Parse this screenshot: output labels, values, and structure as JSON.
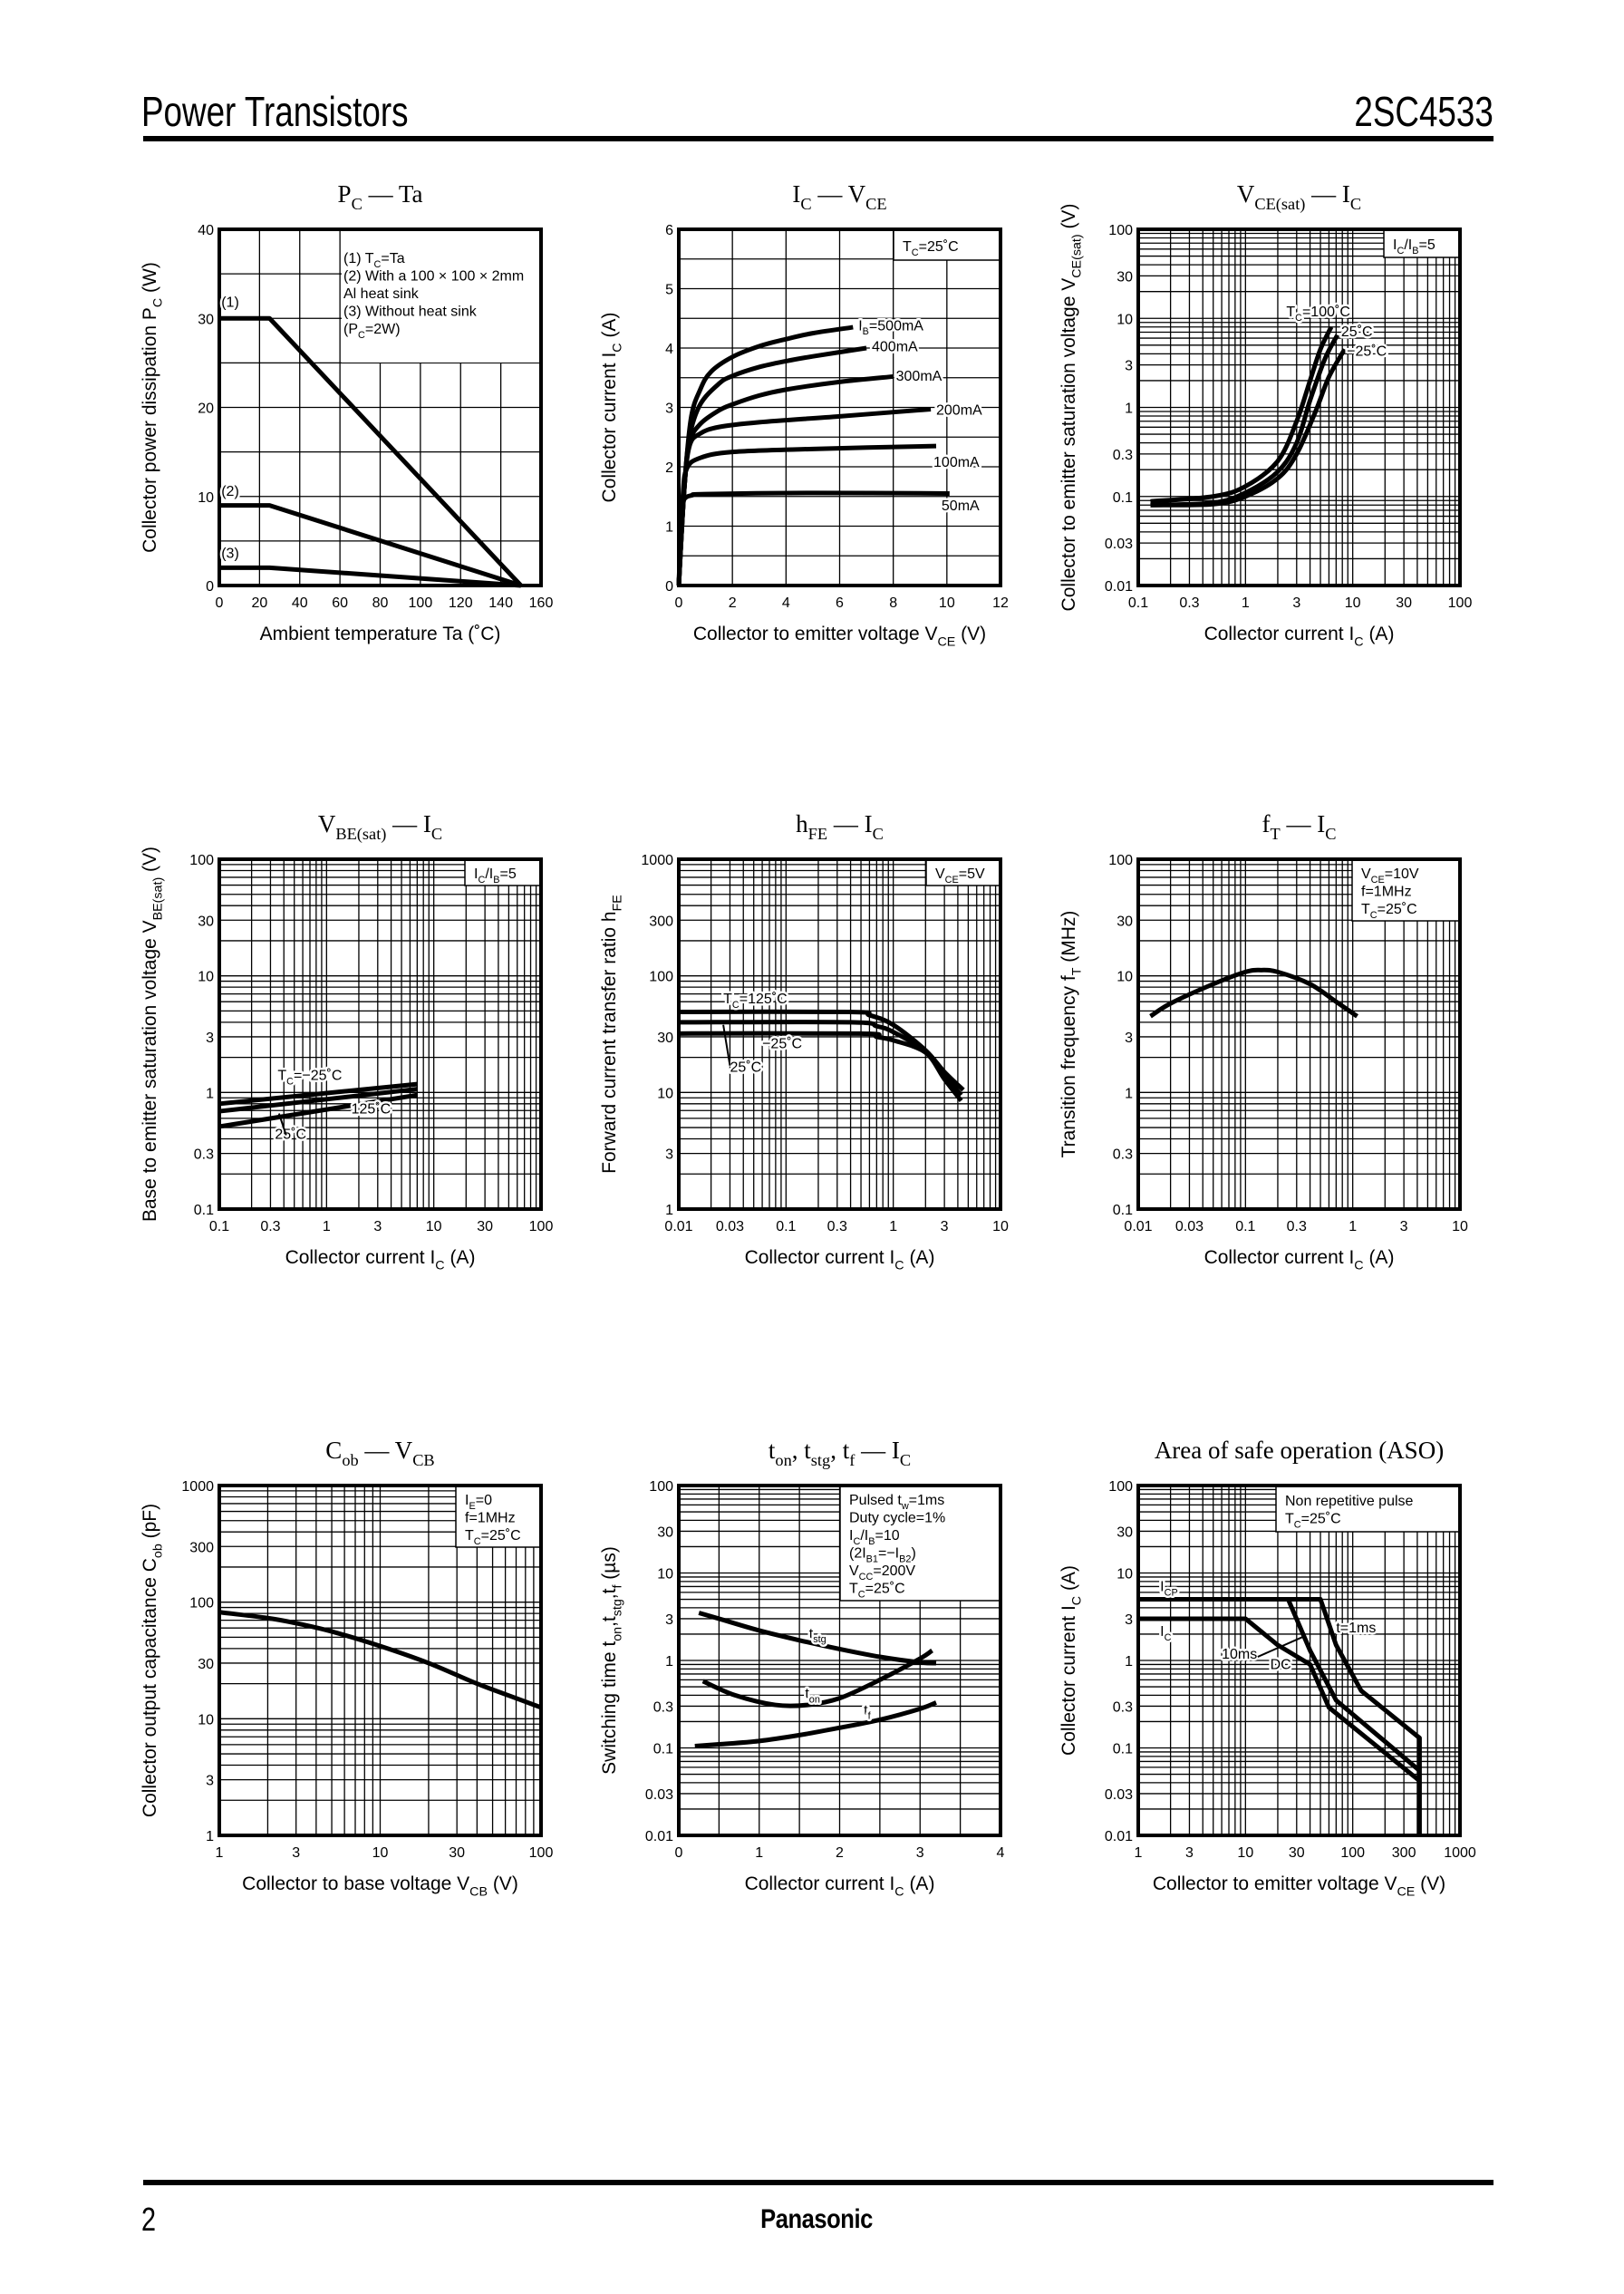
{
  "header": {
    "title": "Power Transistors",
    "part_number": "2SC4533"
  },
  "footer": {
    "page": "2",
    "brand": "Panasonic"
  },
  "chart_data": [
    {
      "type": "line",
      "title": "P_{C} — Ta",
      "xlabel": "Ambient temperature   Ta   (˚C)",
      "ylabel": "Collector power dissipation   P_{C}   (W)",
      "xscale": "linear",
      "yscale": "linear",
      "xlim": [
        0,
        160
      ],
      "ylim": [
        0,
        40
      ],
      "xticks": [
        0,
        20,
        40,
        60,
        80,
        100,
        120,
        140,
        160
      ],
      "yticks": [
        0,
        10,
        20,
        30,
        40
      ],
      "grid": true,
      "xgrid_step": 20,
      "ygrid_step": 5,
      "conditions": [
        "(1) T_{C}=Ta",
        "(2) With a 100 × 100 × 2mm",
        "      Al heat sink",
        "(3) Without heat sink",
        "      (P_{C}=2W)"
      ],
      "series": [
        {
          "name": "(1)",
          "points": [
            [
              0,
              30
            ],
            [
              25,
              30
            ],
            [
              150,
              0
            ]
          ]
        },
        {
          "name": "(2)",
          "points": [
            [
              0,
              9
            ],
            [
              25,
              9
            ],
            [
              150,
              0
            ]
          ]
        },
        {
          "name": "(3)",
          "points": [
            [
              0,
              2
            ],
            [
              25,
              2
            ],
            [
              150,
              0
            ]
          ]
        }
      ],
      "annotations": []
    },
    {
      "type": "line",
      "title": "I_{C} — V_{CE}",
      "xlabel": "Collector to emitter voltage   V_{CE}   (V)",
      "ylabel": "Collector current   I_{C}   (A)",
      "xscale": "linear",
      "yscale": "linear",
      "xlim": [
        0,
        12
      ],
      "ylim": [
        0,
        6
      ],
      "xticks": [
        0,
        2,
        4,
        6,
        8,
        10,
        12
      ],
      "yticks": [
        0,
        1,
        2,
        3,
        4,
        5,
        6
      ],
      "grid": true,
      "xgrid_step": 2,
      "ygrid_step": 0.5,
      "conditions": [
        "T_{C}=25˚C"
      ],
      "series": [
        {
          "name": "I_{B}=500mA",
          "points": [
            [
              0,
              0
            ],
            [
              0.2,
              1.6
            ],
            [
              0.45,
              2.8
            ],
            [
              0.8,
              3.3
            ],
            [
              1.2,
              3.6
            ],
            [
              2,
              3.85
            ],
            [
              3,
              4.03
            ],
            [
              4,
              4.15
            ],
            [
              5,
              4.25
            ],
            [
              6.5,
              4.35
            ]
          ]
        },
        {
          "name": "400mA",
          "points": [
            [
              0,
              0
            ],
            [
              0.2,
              1.6
            ],
            [
              0.4,
              2.5
            ],
            [
              0.8,
              3.05
            ],
            [
              1.5,
              3.4
            ],
            [
              2,
              3.53
            ],
            [
              3,
              3.68
            ],
            [
              4,
              3.78
            ],
            [
              5,
              3.86
            ],
            [
              7,
              4.0
            ]
          ]
        },
        {
          "name": "300mA",
          "points": [
            [
              0,
              0
            ],
            [
              0.2,
              1.6
            ],
            [
              0.4,
              2.4
            ],
            [
              0.8,
              2.72
            ],
            [
              1.5,
              2.95
            ],
            [
              2,
              3.05
            ],
            [
              3,
              3.2
            ],
            [
              4,
              3.3
            ],
            [
              6,
              3.43
            ],
            [
              8,
              3.52
            ]
          ]
        },
        {
          "name": "200mA",
          "points": [
            [
              0,
              0
            ],
            [
              0.2,
              1.6
            ],
            [
              0.4,
              2.35
            ],
            [
              0.8,
              2.56
            ],
            [
              1.5,
              2.67
            ],
            [
              3,
              2.75
            ],
            [
              6,
              2.85
            ],
            [
              9.4,
              2.97
            ]
          ]
        },
        {
          "name": "100mA",
          "points": [
            [
              0,
              0
            ],
            [
              0.15,
              1.5
            ],
            [
              0.3,
              1.97
            ],
            [
              0.8,
              2.15
            ],
            [
              2,
              2.25
            ],
            [
              5,
              2.3
            ],
            [
              9.6,
              2.35
            ]
          ]
        },
        {
          "name": "50mA",
          "points": [
            [
              0,
              0
            ],
            [
              0.1,
              1.2
            ],
            [
              0.2,
              1.45
            ],
            [
              0.5,
              1.52
            ],
            [
              1,
              1.54
            ],
            [
              5,
              1.56
            ],
            [
              10.1,
              1.55
            ]
          ]
        }
      ],
      "annotations": []
    },
    {
      "type": "line",
      "title": "V_{CE(sat)} — I_{C}",
      "xlabel": "Collector current   I_{C}   (A)",
      "ylabel": "Collector to emitter saturation voltage   V_{CE(sat)}   (V)",
      "xscale": "log",
      "yscale": "log",
      "xlim": [
        0.1,
        100
      ],
      "ylim": [
        0.01,
        100
      ],
      "xticks": [
        0.1,
        0.3,
        1,
        3,
        10,
        30,
        100
      ],
      "yticks": [
        0.01,
        0.03,
        0.1,
        0.3,
        1,
        3,
        10,
        30,
        100
      ],
      "grid": true,
      "conditions": [
        "I_{C}/I_{B}=5"
      ],
      "series": [
        {
          "name": "T_{C}=100˚C",
          "points": [
            [
              0.13,
              0.088
            ],
            [
              0.5,
              0.1
            ],
            [
              1,
              0.13
            ],
            [
              2,
              0.25
            ],
            [
              3,
              0.7
            ],
            [
              4,
              2
            ],
            [
              5,
              4.5
            ],
            [
              6.3,
              8
            ]
          ]
        },
        {
          "name": "25˚C",
          "points": [
            [
              0.13,
              0.08
            ],
            [
              0.5,
              0.085
            ],
            [
              1,
              0.11
            ],
            [
              2,
              0.19
            ],
            [
              3,
              0.4
            ],
            [
              4,
              1.2
            ],
            [
              5.5,
              3.5
            ],
            [
              7.2,
              6.5
            ]
          ]
        },
        {
          "name": "−25˚C",
          "points": [
            [
              0.13,
              0.08
            ],
            [
              0.5,
              0.082
            ],
            [
              1,
              0.1
            ],
            [
              2,
              0.16
            ],
            [
              3,
              0.3
            ],
            [
              4.5,
              0.9
            ],
            [
              6,
              2.2
            ],
            [
              8.4,
              4.5
            ]
          ]
        }
      ],
      "annotations": []
    },
    {
      "type": "line",
      "title": "V_{BE(sat)} — I_{C}",
      "xlabel": "Collector current   I_{C}   (A)",
      "ylabel": "Base to emitter saturation voltage   V_{BE(sat)}   (V)",
      "xscale": "log",
      "yscale": "log",
      "xlim": [
        0.1,
        100
      ],
      "ylim": [
        0.1,
        100
      ],
      "xticks": [
        0.1,
        0.3,
        1,
        3,
        10,
        30,
        100
      ],
      "yticks": [
        0.1,
        0.3,
        1,
        3,
        10,
        30,
        100
      ],
      "grid": true,
      "conditions": [
        "I_{C}/I_{B}=5"
      ],
      "series": [
        {
          "name": "T_{C}=−25˚C",
          "points": [
            [
              0.1,
              0.8
            ],
            [
              7,
              1.18
            ]
          ]
        },
        {
          "name": "25˚C",
          "points": [
            [
              0.1,
              0.69
            ],
            [
              7,
              1.07
            ]
          ]
        },
        {
          "name": "125˚C",
          "points": [
            [
              0.1,
              0.51
            ],
            [
              7,
              0.95
            ]
          ]
        }
      ],
      "annotations": []
    },
    {
      "type": "line",
      "title": "h_{FE} — I_{C}",
      "xlabel": "Collector current   I_{C}   (A)",
      "ylabel": "Forward current transfer ratio   h_{FE}",
      "xscale": "log",
      "yscale": "log",
      "xlim": [
        0.01,
        10
      ],
      "ylim": [
        1,
        1000
      ],
      "xticks": [
        0.01,
        0.03,
        0.1,
        0.3,
        1,
        3,
        10
      ],
      "yticks": [
        1,
        3,
        10,
        30,
        100,
        300,
        1000
      ],
      "grid": true,
      "conditions": [
        "V_{CE}=5V"
      ],
      "series": [
        {
          "name": "T_{C}=125˚C",
          "points": [
            [
              0.01,
              49
            ],
            [
              0.4,
              49
            ],
            [
              0.6,
              46
            ],
            [
              1,
              38
            ],
            [
              2,
              23
            ],
            [
              3,
              15
            ],
            [
              4.5,
              10.5
            ]
          ]
        },
        {
          "name": "25˚C",
          "points": [
            [
              0.01,
              40
            ],
            [
              0.4,
              40
            ],
            [
              0.7,
              37
            ],
            [
              1,
              33
            ],
            [
              2,
              22.5
            ],
            [
              3,
              14
            ],
            [
              4.3,
              9.5
            ]
          ]
        },
        {
          "name": "−25˚C",
          "points": [
            [
              0.01,
              32
            ],
            [
              0.5,
              32
            ],
            [
              0.7,
              30
            ],
            [
              1,
              28
            ],
            [
              2,
              22
            ],
            [
              3,
              13
            ],
            [
              4.3,
              8.5
            ]
          ]
        }
      ],
      "annotations": []
    },
    {
      "type": "line",
      "title": "f_{T} — I_{C}",
      "xlabel": "Collector current   I_{C}   (A)",
      "ylabel": "Transition frequency   f_{T}   (MHz)",
      "xscale": "log",
      "yscale": "log",
      "xlim": [
        0.01,
        10
      ],
      "ylim": [
        0.1,
        100
      ],
      "xticks": [
        0.01,
        0.03,
        0.1,
        0.3,
        1,
        3,
        10
      ],
      "yticks": [
        0.1,
        0.3,
        1,
        3,
        10,
        30,
        100
      ],
      "grid": true,
      "conditions": [
        "V_{CE}=10V",
        "f=1MHz",
        "T_{C}=25˚C"
      ],
      "series": [
        {
          "points": [
            [
              0.013,
              4.5
            ],
            [
              0.02,
              5.8
            ],
            [
              0.05,
              8.5
            ],
            [
              0.1,
              10.8
            ],
            [
              0.14,
              11.2
            ],
            [
              0.2,
              10.8
            ],
            [
              0.4,
              8.5
            ],
            [
              0.7,
              6
            ],
            [
              1.1,
              4.5
            ]
          ]
        }
      ],
      "annotations": []
    },
    {
      "type": "line",
      "title": "C_{ob} — V_{CB}",
      "xlabel": "Collector to base voltage   V_{CB}   (V)",
      "ylabel": "Collector output capacitance   C_{ob}   (pF)",
      "xscale": "log",
      "yscale": "log",
      "xlim": [
        1,
        100
      ],
      "ylim": [
        1,
        1000
      ],
      "xticks": [
        1,
        3,
        10,
        30,
        100
      ],
      "yticks": [
        1,
        3,
        10,
        30,
        100,
        300,
        1000
      ],
      "grid": true,
      "conditions": [
        "I_{E}=0",
        "f=1MHz",
        "T_{C}=25˚C"
      ],
      "series": [
        {
          "points": [
            [
              1,
              82
            ],
            [
              2,
              73
            ],
            [
              3,
              66
            ],
            [
              5,
              56
            ],
            [
              10,
              42
            ],
            [
              20,
              30
            ],
            [
              40,
              20
            ],
            [
              70,
              15
            ],
            [
              100,
              12.5
            ]
          ]
        }
      ],
      "annotations": []
    },
    {
      "type": "line",
      "title": "t_{on}, t_{stg}, t_{f} — I_{C}",
      "xlabel": "Collector current   I_{C}   (A)",
      "ylabel": "Switching time   t_{on},t_{stg},t_{f}   (µs)",
      "xscale": "linear",
      "yscale": "log",
      "xlim": [
        0,
        4
      ],
      "ylim": [
        0.01,
        100
      ],
      "xticks": [
        0,
        1,
        2,
        3,
        4
      ],
      "yticks": [
        0.01,
        0.03,
        0.1,
        0.3,
        1,
        3,
        10,
        30,
        100
      ],
      "grid": true,
      "xgrid_step": 0.5,
      "conditions": [
        "Pulsed t_{w}=1ms",
        "Duty cycle=1%",
        "I_{C}/I_{B}=10",
        "(2I_{B1}=−I_{B2})",
        "V_{CC}=200V",
        "T_{C}=25˚C"
      ],
      "series": [
        {
          "name": "t_{stg}",
          "points": [
            [
              0.25,
              3.5
            ],
            [
              0.5,
              3
            ],
            [
              1,
              2.2
            ],
            [
              1.5,
              1.7
            ],
            [
              2,
              1.35
            ],
            [
              2.5,
              1.1
            ],
            [
              3,
              0.95
            ],
            [
              3.2,
              0.93
            ]
          ]
        },
        {
          "name": "t_{on}",
          "points": [
            [
              0.3,
              0.58
            ],
            [
              0.7,
              0.4
            ],
            [
              1.2,
              0.31
            ],
            [
              1.6,
              0.31
            ],
            [
              2,
              0.37
            ],
            [
              2.5,
              0.6
            ],
            [
              3,
              1.05
            ],
            [
              3.15,
              1.3
            ]
          ]
        },
        {
          "name": "t_{f}",
          "points": [
            [
              0.2,
              0.105
            ],
            [
              0.5,
              0.11
            ],
            [
              1,
              0.12
            ],
            [
              1.5,
              0.14
            ],
            [
              2,
              0.17
            ],
            [
              2.5,
              0.21
            ],
            [
              3,
              0.28
            ],
            [
              3.2,
              0.33
            ]
          ]
        }
      ],
      "annotations": []
    },
    {
      "type": "line",
      "title": "Area of safe operation (ASO)",
      "xlabel": "Collector to emitter voltage   V_{CE}   (V)",
      "ylabel": "Collector current   I_{C}   (A)",
      "xscale": "log",
      "yscale": "log",
      "xlim": [
        1,
        1000
      ],
      "ylim": [
        0.01,
        100
      ],
      "xticks": [
        1,
        3,
        10,
        30,
        100,
        300,
        1000
      ],
      "yticks": [
        0.01,
        0.03,
        0.1,
        0.3,
        1,
        3,
        10,
        30,
        100
      ],
      "grid": true,
      "conditions": [
        "Non repetitive pulse",
        "T_{C}=25˚C"
      ],
      "series": [
        {
          "name": "t=1ms",
          "points": [
            [
              1,
              5
            ],
            [
              50,
              5
            ],
            [
              70,
              1.5
            ],
            [
              120,
              0.45
            ],
            [
              420,
              0.13
            ],
            [
              420,
              0.01
            ]
          ]
        },
        {
          "name": "10ms",
          "points": [
            [
              25,
              5
            ],
            [
              40,
              1.3
            ],
            [
              70,
              0.35
            ],
            [
              420,
              0.055
            ]
          ]
        },
        {
          "name": "DC",
          "points": [
            [
              1,
              3
            ],
            [
              10,
              3
            ],
            [
              20,
              1.5
            ],
            [
              40,
              0.9
            ],
            [
              60,
              0.29
            ],
            [
              420,
              0.042
            ]
          ]
        }
      ],
      "annotations": [
        "I_{CP}",
        "I_{C}"
      ]
    }
  ]
}
